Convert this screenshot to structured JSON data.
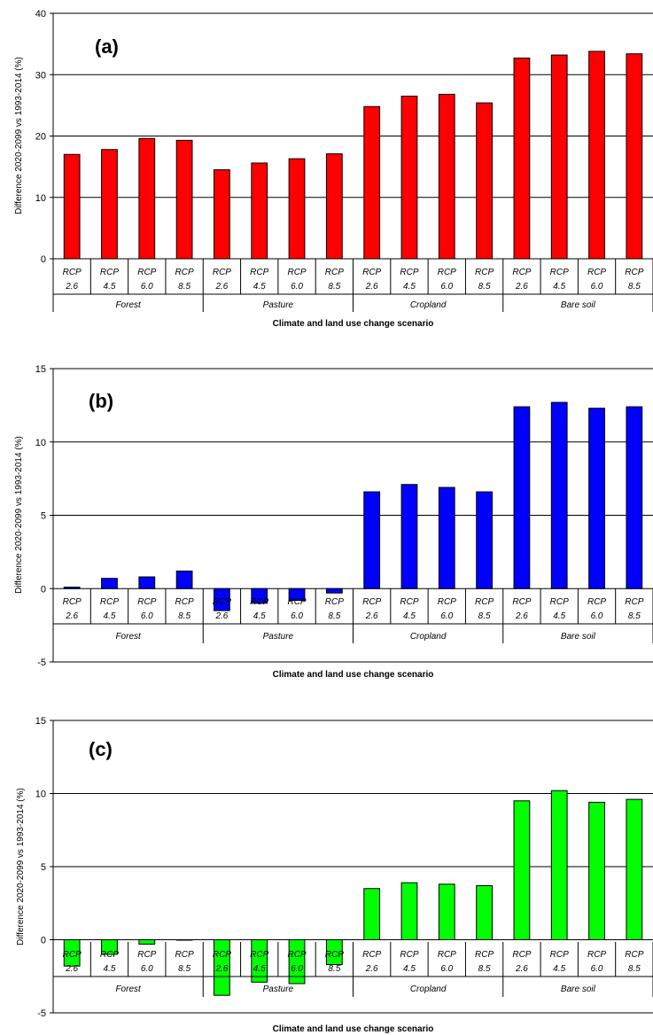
{
  "chart_data": [
    {
      "type": "bar",
      "panel_label": "(a)",
      "color": "#ff0000",
      "ylim": [
        0,
        40
      ],
      "yticks": [
        0,
        10,
        20,
        30,
        40
      ],
      "grid": true,
      "ylabel": "Difference 2020-2099 vs 1993-2014 (%)",
      "xlabel": "Climate and land use change scenario",
      "groups": [
        "Forest",
        "Pasture",
        "Cropland",
        "Bare soil"
      ],
      "categories": [
        [
          "RCP",
          "2.6"
        ],
        [
          "RCP",
          "4.5"
        ],
        [
          "RCP",
          "6.0"
        ],
        [
          "RCP",
          "8.5"
        ],
        [
          "RCP",
          "2.6"
        ],
        [
          "RCP",
          "4.5"
        ],
        [
          "RCP",
          "6.0"
        ],
        [
          "RCP",
          "8.5"
        ],
        [
          "RCP",
          "2.6"
        ],
        [
          "RCP",
          "4.5"
        ],
        [
          "RCP",
          "6.0"
        ],
        [
          "RCP",
          "8.5"
        ],
        [
          "RCP",
          "2.6"
        ],
        [
          "RCP",
          "4.5"
        ],
        [
          "RCP",
          "6.0"
        ],
        [
          "RCP",
          "8.5"
        ]
      ],
      "values": [
        17.0,
        17.8,
        19.6,
        19.3,
        14.5,
        15.6,
        16.3,
        17.1,
        24.8,
        26.5,
        26.8,
        25.4,
        32.7,
        33.2,
        33.8,
        33.4
      ]
    },
    {
      "type": "bar",
      "panel_label": "(b)",
      "color": "#0000ff",
      "ylim": [
        -5,
        15
      ],
      "yticks": [
        -5,
        0,
        5,
        10,
        15
      ],
      "grid": true,
      "ylabel": "Difference 2020-2099 vs 1993-2014 (%)",
      "xlabel": "Climate and land use change scenario",
      "groups": [
        "Forest",
        "Pasture",
        "Cropland",
        "Bare soil"
      ],
      "categories": [
        [
          "RCP",
          "2.6"
        ],
        [
          "RCP",
          "4.5"
        ],
        [
          "RCP",
          "6.0"
        ],
        [
          "RCP",
          "8.5"
        ],
        [
          "RCP",
          "2.6"
        ],
        [
          "RCP",
          "4.5"
        ],
        [
          "RCP",
          "6.0"
        ],
        [
          "RCP",
          "8.5"
        ],
        [
          "RCP",
          "2.6"
        ],
        [
          "RCP",
          "4.5"
        ],
        [
          "RCP",
          "6.0"
        ],
        [
          "RCP",
          "8.5"
        ],
        [
          "RCP",
          "2.6"
        ],
        [
          "RCP",
          "4.5"
        ],
        [
          "RCP",
          "6.0"
        ],
        [
          "RCP",
          "8.5"
        ]
      ],
      "values": [
        0.1,
        0.7,
        0.8,
        1.2,
        -1.5,
        -1.0,
        -0.8,
        -0.3,
        6.6,
        7.1,
        6.9,
        6.6,
        12.4,
        12.7,
        12.3,
        12.4
      ]
    },
    {
      "type": "bar",
      "panel_label": "(c)",
      "color": "#00ff00",
      "ylim": [
        -5,
        15
      ],
      "yticks": [
        -5,
        0,
        5,
        10,
        15
      ],
      "grid": true,
      "ylabel": "Difference 2020-2099 vs 1993-2014 (%)",
      "xlabel": "Climate and land use change scenario",
      "groups": [
        "Forest",
        "Pasture",
        "Cropland",
        "Bare soil"
      ],
      "categories": [
        [
          "RCP",
          "2.6"
        ],
        [
          "RCP",
          "4.5"
        ],
        [
          "RCP",
          "6.0"
        ],
        [
          "RCP",
          "8.5"
        ],
        [
          "RCP",
          "2.6"
        ],
        [
          "RCP",
          "4.5"
        ],
        [
          "RCP",
          "6.0"
        ],
        [
          "RCP",
          "8.5"
        ],
        [
          "RCP",
          "2.6"
        ],
        [
          "RCP",
          "4.5"
        ],
        [
          "RCP",
          "6.0"
        ],
        [
          "RCP",
          "8.5"
        ],
        [
          "RCP",
          "2.6"
        ],
        [
          "RCP",
          "4.5"
        ],
        [
          "RCP",
          "6.0"
        ],
        [
          "RCP",
          "8.5"
        ]
      ],
      "values": [
        -1.8,
        -1.0,
        -0.3,
        0.0,
        -3.8,
        -2.9,
        -3.0,
        -1.7,
        3.5,
        3.9,
        3.8,
        3.7,
        9.5,
        10.2,
        9.4,
        9.6
      ]
    }
  ]
}
